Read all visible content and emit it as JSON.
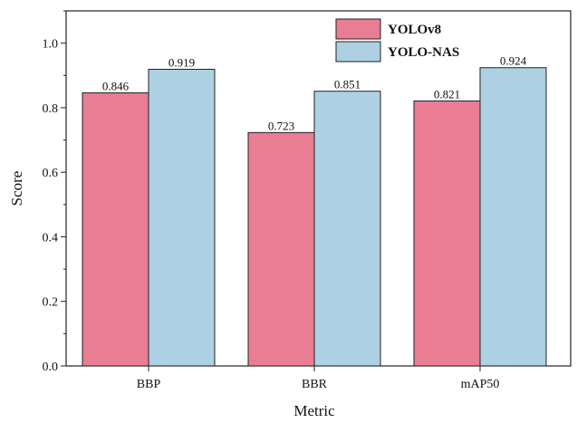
{
  "chart_data": {
    "type": "bar",
    "title": "",
    "xlabel": "Metric",
    "ylabel": "Score",
    "categories": [
      "BBP",
      "BBR",
      "mAP50"
    ],
    "series": [
      {
        "name": "YOLOv8",
        "values": [
          0.846,
          0.723,
          0.821
        ],
        "labels": [
          "0.846",
          "0.723",
          "0.821"
        ],
        "color": "#E87D93"
      },
      {
        "name": "YOLO-NAS",
        "values": [
          0.919,
          0.851,
          0.924
        ],
        "labels": [
          "0.919",
          "0.851",
          "0.924"
        ],
        "color": "#ADD0E3"
      }
    ],
    "ylim": [
      0,
      1.1
    ],
    "yticks": [
      0.0,
      0.2,
      0.4,
      0.6,
      0.8,
      1.0
    ],
    "ytick_labels": [
      "0.0",
      "0.2",
      "0.4",
      "0.6",
      "0.8",
      "1.0"
    ],
    "grid": false,
    "legend_position": "top-right"
  }
}
